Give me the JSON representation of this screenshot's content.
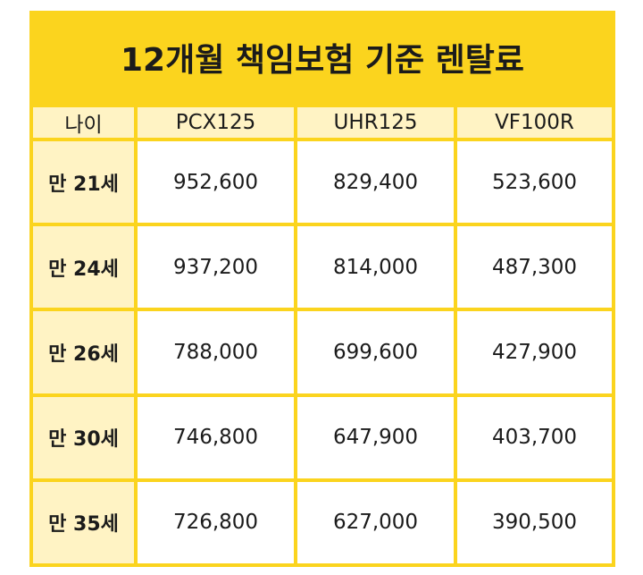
{
  "title": "12개월 책임보험 기준 렌탈료",
  "table": {
    "headers": [
      "나이",
      "PCX125",
      "UHR125",
      "VF100R"
    ],
    "rows": [
      {
        "age": "만 21세",
        "pcx": "952,600",
        "uhr": "829,400",
        "vf": "523,600"
      },
      {
        "age": "만 24세",
        "pcx": "937,200",
        "uhr": "814,000",
        "vf": "487,300"
      },
      {
        "age": "만 26세",
        "pcx": "788,000",
        "uhr": "699,600",
        "vf": "427,900"
      },
      {
        "age": "만 30세",
        "pcx": "746,800",
        "uhr": "647,900",
        "vf": "403,700"
      },
      {
        "age": "만 35세",
        "pcx": "726,800",
        "uhr": "627,000",
        "vf": "390,500"
      }
    ]
  },
  "colors": {
    "frame": "#fbd41e",
    "header_bg": "#fff3c4",
    "cell_bg": "#ffffff",
    "text": "#1b1b1b"
  }
}
